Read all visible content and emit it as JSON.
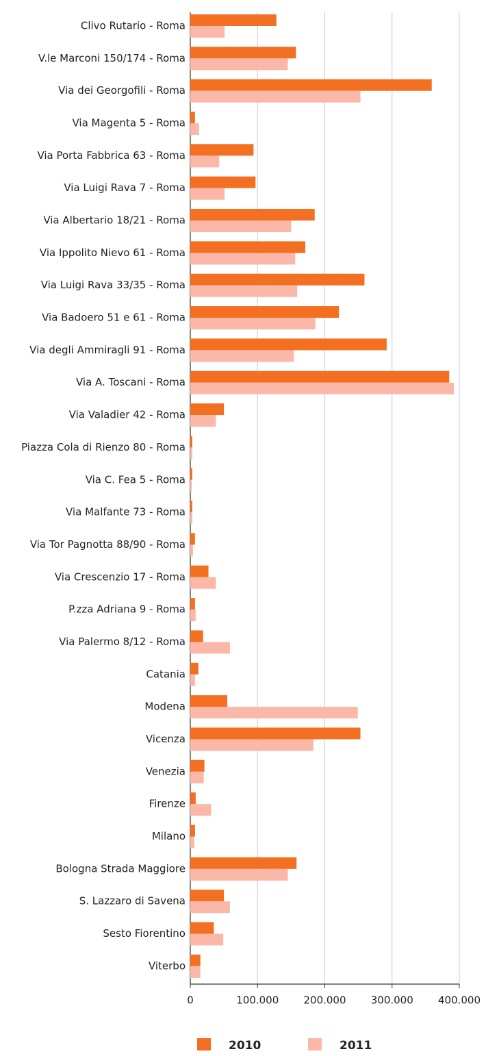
{
  "chart_data": {
    "type": "bar",
    "orientation": "horizontal",
    "categories": [
      "Clivo Rutario - Roma",
      "V.le Marconi 150/174 - Roma",
      "Via dei Georgofili - Roma",
      "Via Magenta 5 - Roma",
      "Via Porta Fabbrica 63 - Roma",
      "Via Luigi Rava 7 - Roma",
      "Via Albertario 18/21 - Roma",
      "Via Ippolito Nievo 61 - Roma",
      "Via Luigi Rava 33/35 - Roma",
      "Via Badoero 51 e 61 - Roma",
      "Via degli Ammiragli 91 - Roma",
      "Via A. Toscani - Roma",
      "Via Valadier 42 - Roma",
      "Piazza Cola di Rienzo 80 - Roma",
      "Via C. Fea 5 - Roma",
      "Via Malfante 73 - Roma",
      "Via Tor Pagnotta 88/90 - Roma",
      "Via Crescenzio 17 - Roma",
      "P.zza Adriana 9 - Roma",
      "Via Palermo 8/12 - Roma",
      "Catania",
      "Modena",
      "Vicenza",
      "Venezia",
      "Firenze",
      "Milano",
      "Bologna Strada Maggiore",
      "S. Lazzaro di Savena",
      "Sesto Fiorentino",
      "Viterbo"
    ],
    "series": [
      {
        "name": "2010",
        "color": "#f36f21",
        "values": [
          128000,
          157000,
          359000,
          7000,
          94000,
          97000,
          185000,
          171000,
          259000,
          221000,
          292000,
          385000,
          50000,
          3000,
          3000,
          3000,
          7000,
          27000,
          7000,
          19000,
          12000,
          55000,
          253000,
          21000,
          8000,
          7000,
          158000,
          50000,
          35000,
          15000
        ]
      },
      {
        "name": "2011",
        "color": "#fbb8a8",
        "values": [
          51000,
          145000,
          253000,
          13000,
          43000,
          51000,
          150000,
          156000,
          159000,
          186000,
          154000,
          392000,
          38000,
          3000,
          2000,
          3000,
          4000,
          38000,
          8000,
          59000,
          7000,
          249000,
          183000,
          20000,
          31000,
          6000,
          145000,
          59000,
          49000,
          15000
        ]
      }
    ],
    "xlim": [
      0,
      400000
    ],
    "xticks": [
      0,
      {
        "value": 100000,
        "label": "100.000"
      },
      {
        "value": 200000,
        "label": "200.000"
      },
      {
        "value": 300000,
        "label": "300.000"
      },
      {
        "value": 400000,
        "label": "400.000"
      }
    ],
    "grid": true,
    "legend": "bottom"
  }
}
